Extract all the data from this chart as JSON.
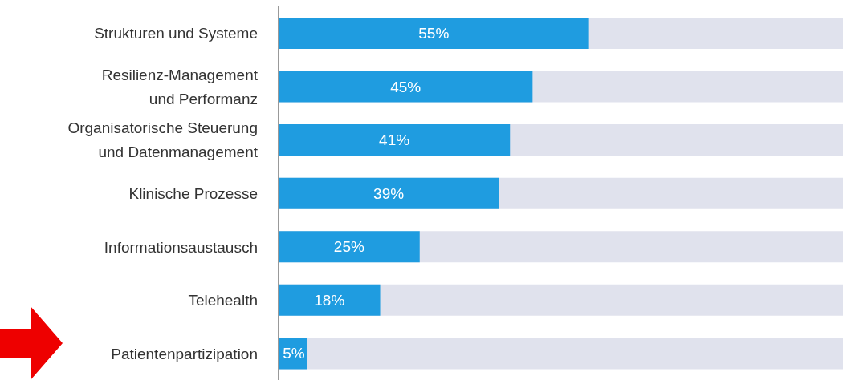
{
  "chart_data": {
    "type": "bar",
    "orientation": "horizontal",
    "categories": [
      "Strukturen und Systeme",
      "Resilienz-Management\nund Performanz",
      "Organisatorische Steuerung\nund Datenmanagement",
      "Klinische Prozesse",
      "Informationsaustausch",
      "Telehealth",
      "Patientenpartizipation"
    ],
    "values": [
      55,
      45,
      41,
      39,
      25,
      18,
      5
    ],
    "color": "#1f9ce0",
    "xlim": [
      0,
      100
    ],
    "data_labels": true,
    "value_labels": [
      "55%",
      "45%",
      "41%",
      "39%",
      "25%",
      "18%",
      "5%"
    ],
    "tick_labels": "y"
  }
}
